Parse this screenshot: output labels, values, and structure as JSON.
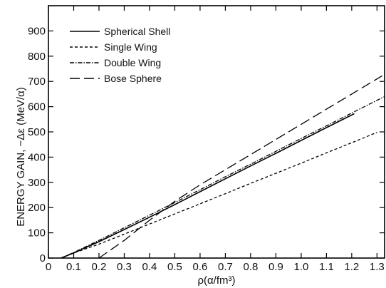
{
  "chart_data": {
    "type": "line",
    "title": "",
    "xlabel": "ρ(α/fm³)",
    "ylabel": "ENERGY GAIN, −Δε (MeV/α)",
    "xlim": [
      0,
      1.33
    ],
    "ylim": [
      0,
      1000
    ],
    "x_ticks": [
      "0",
      "0.1",
      "0.2",
      "0.3",
      "0.4",
      "0.5",
      "0.6",
      "0.7",
      "0.8",
      "0.9",
      "1.0",
      "1.1",
      "1.2",
      "1.3"
    ],
    "x_tick_values": [
      0,
      0.1,
      0.2,
      0.3,
      0.4,
      0.5,
      0.6,
      0.7,
      0.8,
      0.9,
      1.0,
      1.1,
      1.2,
      1.3
    ],
    "y_ticks": [
      "0",
      "100",
      "200",
      "300",
      "400",
      "500",
      "600",
      "700",
      "800",
      "900"
    ],
    "y_tick_values": [
      0,
      100,
      200,
      300,
      400,
      500,
      600,
      700,
      800,
      900
    ],
    "grid": false,
    "legend_position": "top-left",
    "series": [
      {
        "name": "Spherical Shell",
        "style": "solid",
        "color": "#000000",
        "x": [
          0.05,
          0.1,
          0.2,
          0.3,
          0.4,
          0.5,
          0.6,
          0.7,
          0.8,
          0.9,
          1.0,
          1.1,
          1.21
        ],
        "y": [
          0,
          20,
          65,
          113,
          162,
          212,
          263,
          314,
          365,
          415,
          466,
          517,
          572
        ]
      },
      {
        "name": "Single Wing",
        "style": "dashed",
        "color": "#000000",
        "x": [
          0.05,
          0.1,
          0.2,
          0.3,
          0.4,
          0.5,
          0.6,
          0.7,
          0.8,
          0.9,
          1.0,
          1.1,
          1.2,
          1.3
        ],
        "y": [
          0,
          20,
          55,
          95,
          135,
          175,
          215,
          255,
          296,
          336,
          376,
          417,
          457,
          498
        ]
      },
      {
        "name": "Double Wing",
        "style": "dash-dot",
        "color": "#000000",
        "x": [
          0.05,
          0.1,
          0.2,
          0.3,
          0.4,
          0.5,
          0.6,
          0.7,
          0.8,
          0.9,
          1.0,
          1.1,
          1.2,
          1.33
        ],
        "y": [
          0,
          22,
          70,
          120,
          170,
          220,
          271,
          322,
          372,
          423,
          474,
          524,
          575,
          640
        ]
      },
      {
        "name": "Bose Sphere",
        "style": "long-dash",
        "color": "#000000",
        "x": [
          0.2,
          0.3,
          0.4,
          0.5,
          0.6,
          0.7,
          0.8,
          0.9,
          1.0,
          1.1,
          1.2,
          1.32
        ],
        "y": [
          0,
          70,
          150,
          225,
          290,
          350,
          410,
          470,
          530,
          590,
          650,
          722
        ]
      }
    ]
  }
}
